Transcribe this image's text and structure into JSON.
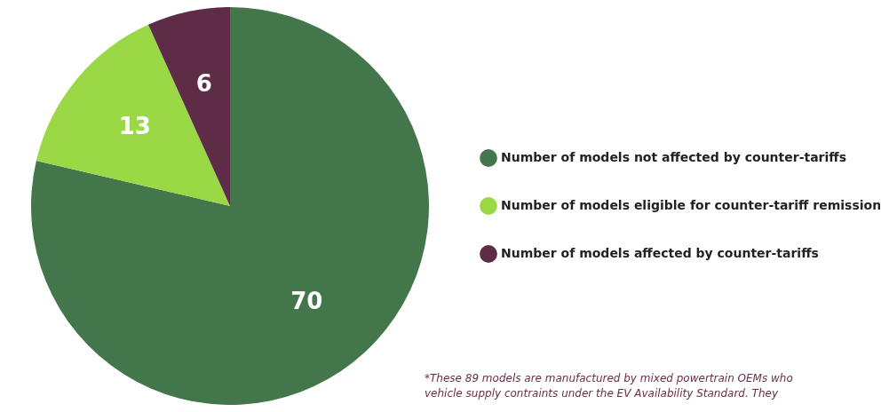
{
  "chart_data": {
    "type": "pie",
    "categories": [
      "Number of models not affected by counter-tariffs",
      "Number of models eligible for counter-tariff remission",
      "Number of models affected by counter-tariffs"
    ],
    "values": [
      70,
      13,
      6
    ],
    "colors": [
      "#43774b",
      "#9bd845",
      "#5e2c46"
    ],
    "data_labels": true,
    "legend": "right",
    "annotations": [
      "*These 89 models are manufactured by mixed powertrain OEMs who",
      "vehicle supply contraints under the EV Availability Standard. They"
    ]
  }
}
